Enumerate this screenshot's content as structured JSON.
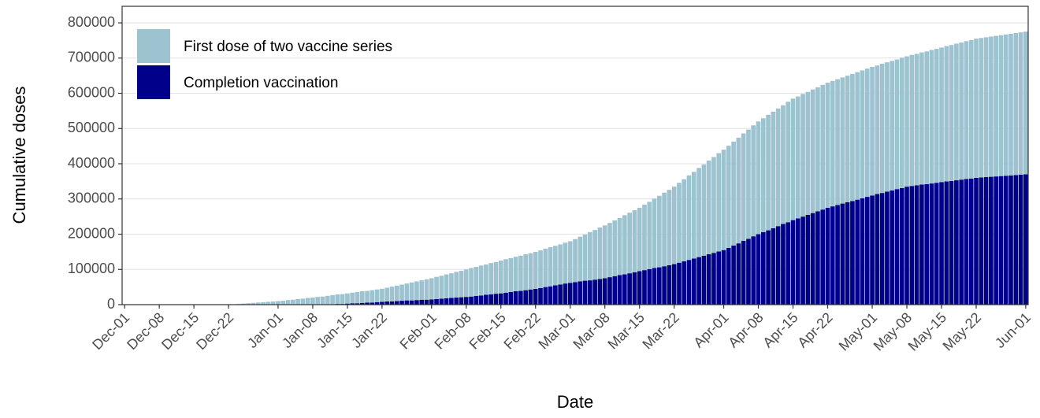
{
  "chart_data": {
    "type": "stacked-bar",
    "x_label": "Date",
    "y_label": "Cumulative doses",
    "categories": [
      "Dec-01",
      null,
      null,
      null,
      null,
      null,
      null,
      "Dec-08",
      null,
      null,
      null,
      null,
      null,
      null,
      "Dec-15",
      null,
      null,
      null,
      null,
      null,
      null,
      "Dec-22",
      null,
      null,
      null,
      null,
      null,
      null,
      null,
      null,
      null,
      "Jan-01",
      null,
      null,
      null,
      null,
      null,
      null,
      "Jan-08",
      null,
      null,
      null,
      null,
      null,
      null,
      "Jan-15",
      null,
      null,
      null,
      null,
      null,
      null,
      "Jan-22",
      null,
      null,
      null,
      null,
      null,
      null,
      null,
      null,
      null,
      "Feb-01",
      null,
      null,
      null,
      null,
      null,
      null,
      "Feb-08",
      null,
      null,
      null,
      null,
      null,
      null,
      "Feb-15",
      null,
      null,
      null,
      null,
      null,
      null,
      "Feb-22",
      null,
      null,
      null,
      null,
      null,
      null,
      "Mar-01",
      null,
      null,
      null,
      null,
      null,
      null,
      "Mar-08",
      null,
      null,
      null,
      null,
      null,
      null,
      "Mar-15",
      null,
      null,
      null,
      null,
      null,
      null,
      "Mar-22",
      null,
      null,
      null,
      null,
      null,
      null,
      null,
      null,
      null,
      "Apr-01",
      null,
      null,
      null,
      null,
      null,
      null,
      "Apr-08",
      null,
      null,
      null,
      null,
      null,
      null,
      "Apr-15",
      null,
      null,
      null,
      null,
      null,
      null,
      "Apr-22",
      null,
      null,
      null,
      null,
      null,
      null,
      null,
      null,
      "May-01",
      null,
      null,
      null,
      null,
      null,
      null,
      "May-08",
      null,
      null,
      null,
      null,
      null,
      null,
      "May-15",
      null,
      null,
      null,
      null,
      null,
      null,
      "May-22",
      null,
      null,
      null,
      null,
      null,
      null,
      null,
      null,
      null,
      "Jun-01"
    ],
    "series": [
      {
        "name": "First dose of two vaccine series",
        "color": "#9dc3d1",
        "values": [
          0,
          0,
          0,
          0,
          0,
          0,
          0,
          0,
          0,
          0,
          0,
          0,
          0,
          0,
          0,
          0,
          0,
          0,
          0,
          0,
          0,
          0,
          1000,
          2000,
          3000,
          4000,
          5000,
          6000,
          7000,
          8000,
          9000,
          10000,
          11000,
          13000,
          14000,
          16000,
          17000,
          19000,
          20000,
          22000,
          23000,
          25000,
          26000,
          27000,
          28000,
          29000,
          30000,
          32000,
          33000,
          33000,
          35000,
          36000,
          37000,
          39000,
          42000,
          44000,
          46000,
          48000,
          51000,
          53000,
          55000,
          58000,
          60000,
          63000,
          65000,
          68000,
          70000,
          73000,
          75000,
          78000,
          81000,
          82000,
          85000,
          86000,
          89000,
          90000,
          93000,
          95000,
          96000,
          98000,
          100000,
          102000,
          103000,
          105000,
          107000,
          109000,
          111000,
          112000,
          114000,
          116000,
          118000,
          122000,
          127000,
          131000,
          137000,
          141000,
          146000,
          150000,
          154000,
          158000,
          162000,
          168000,
          172000,
          176000,
          180000,
          186000,
          191000,
          197000,
          203000,
          209000,
          214000,
          220000,
          227000,
          233000,
          240000,
          246000,
          253000,
          259000,
          266000,
          272000,
          279000,
          285000,
          290000,
          295000,
          300000,
          305000,
          310000,
          315000,
          320000,
          323000,
          328000,
          331000,
          334000,
          337000,
          342000,
          345000,
          346000,
          348000,
          349000,
          351000,
          352000,
          354000,
          355000,
          356000,
          357000,
          358000,
          359000,
          361000,
          362000,
          363000,
          364000,
          365000,
          365000,
          367000,
          367000,
          368000,
          368000,
          370000,
          370000,
          372000,
          373000,
          375000,
          377000,
          379000,
          380000,
          382000,
          384000,
          386000,
          388000,
          389000,
          391000,
          393000,
          395000,
          396000,
          397000,
          398000,
          399000,
          400000,
          401000,
          402000,
          403000,
          404000,
          405000
        ]
      },
      {
        "name": "Completion vaccination",
        "color": "#00008b",
        "values": [
          0,
          0,
          0,
          0,
          0,
          0,
          0,
          0,
          0,
          0,
          0,
          0,
          0,
          0,
          0,
          0,
          0,
          0,
          0,
          0,
          0,
          0,
          0,
          0,
          0,
          0,
          0,
          0,
          0,
          0,
          0,
          0,
          0,
          0,
          0,
          0,
          0,
          0,
          0,
          0,
          0,
          0,
          1000,
          2000,
          2000,
          3000,
          4000,
          4000,
          5000,
          6000,
          6000,
          7000,
          8000,
          9000,
          9000,
          10000,
          11000,
          12000,
          12000,
          13000,
          14000,
          14000,
          15000,
          16000,
          17000,
          18000,
          19000,
          20000,
          21000,
          22000,
          23000,
          25000,
          26000,
          28000,
          29000,
          31000,
          32000,
          34000,
          36000,
          38000,
          39000,
          41000,
          43000,
          45000,
          47000,
          50000,
          52000,
          55000,
          57000,
          60000,
          62000,
          64000,
          66000,
          68000,
          69000,
          71000,
          73000,
          75000,
          78000,
          81000,
          84000,
          86000,
          89000,
          92000,
          95000,
          98000,
          101000,
          104000,
          106000,
          109000,
          112000,
          115000,
          119000,
          123000,
          127000,
          131000,
          135000,
          139000,
          143000,
          147000,
          151000,
          155000,
          161000,
          168000,
          174000,
          181000,
          187000,
          194000,
          200000,
          206000,
          211000,
          217000,
          223000,
          229000,
          234000,
          240000,
          245000,
          250000,
          255000,
          260000,
          265000,
          270000,
          275000,
          279000,
          283000,
          287000,
          291000,
          294000,
          298000,
          302000,
          306000,
          310000,
          314000,
          317000,
          321000,
          324000,
          328000,
          331000,
          335000,
          337000,
          339000,
          341000,
          342000,
          344000,
          346000,
          348000,
          350000,
          351000,
          353000,
          355000,
          357000,
          358000,
          360000,
          361000,
          362000,
          363000,
          364000,
          365000,
          366000,
          367000,
          368000,
          369000,
          370000
        ]
      }
    ],
    "ylim": [
      0,
      847000
    ],
    "yticks": [
      0,
      100000,
      200000,
      300000,
      400000,
      500000,
      600000,
      700000,
      800000
    ],
    "grid": true,
    "legend": "top-left"
  }
}
